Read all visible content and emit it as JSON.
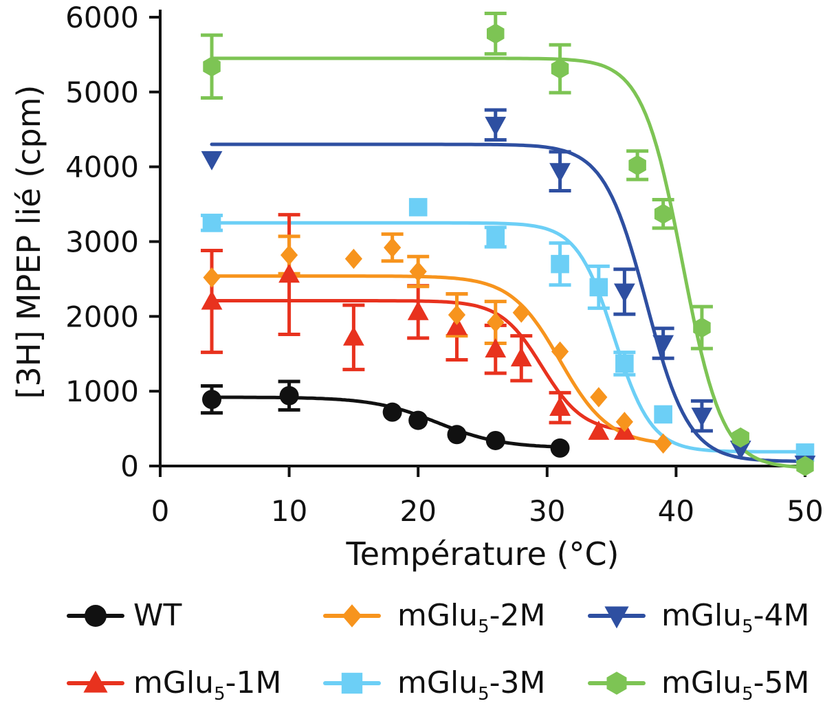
{
  "chart_data": {
    "type": "scatter",
    "title": "",
    "xlabel": "Température (°C)",
    "ylabel": "[3H] MPEP lié (cpm)",
    "xlim": [
      0,
      50
    ],
    "ylim": [
      0,
      6000
    ],
    "x_ticks": [
      0,
      10,
      20,
      30,
      40,
      50
    ],
    "y_ticks": [
      0,
      1000,
      2000,
      3000,
      4000,
      5000,
      6000
    ],
    "grid": false,
    "legend_position": "bottom",
    "series": [
      {
        "name": "WT",
        "legend_main": "WT",
        "legend_sub": "",
        "legend_suffix": "",
        "color": "#111111",
        "marker": "circle",
        "points": [
          {
            "x": 4,
            "y": 890,
            "err": 180
          },
          {
            "x": 10,
            "y": 940,
            "err": 190
          },
          {
            "x": 18,
            "y": 720,
            "err": 0
          },
          {
            "x": 20,
            "y": 610,
            "err": 0
          },
          {
            "x": 23,
            "y": 420,
            "err": 0
          },
          {
            "x": 26,
            "y": 340,
            "err": 0
          },
          {
            "x": 31,
            "y": 240,
            "err": 0
          }
        ],
        "fit": {
          "top": 920,
          "bottom": 240,
          "tm": 21.5,
          "slope": 2.5,
          "x_start": 4,
          "x_end": 31
        }
      },
      {
        "name": "mGlu5-1M",
        "legend_main": "mGlu",
        "legend_sub": "5",
        "legend_suffix": "-1M",
        "color": "#e8321e",
        "marker": "triangle-up",
        "points": [
          {
            "x": 4,
            "y": 2200,
            "err": 680
          },
          {
            "x": 10,
            "y": 2560,
            "err": 800
          },
          {
            "x": 15,
            "y": 1720,
            "err": 430
          },
          {
            "x": 20,
            "y": 2060,
            "err": 350
          },
          {
            "x": 23,
            "y": 1860,
            "err": 440
          },
          {
            "x": 26,
            "y": 1560,
            "err": 320
          },
          {
            "x": 28,
            "y": 1440,
            "err": 300
          },
          {
            "x": 31,
            "y": 780,
            "err": 200
          },
          {
            "x": 34,
            "y": 460,
            "err": 0
          },
          {
            "x": 36,
            "y": 460,
            "err": 0
          }
        ],
        "fit": {
          "top": 2210,
          "bottom": 450,
          "tm": 29.6,
          "slope": 1.6,
          "x_start": 4,
          "x_end": 36
        }
      },
      {
        "name": "mGlu5-2M",
        "legend_main": "mGlu",
        "legend_sub": "5",
        "legend_suffix": "-2M",
        "color": "#f7941d",
        "marker": "diamond",
        "points": [
          {
            "x": 4,
            "y": 2520,
            "err": 0
          },
          {
            "x": 10,
            "y": 2820,
            "err": 250
          },
          {
            "x": 15,
            "y": 2770,
            "err": 0
          },
          {
            "x": 18,
            "y": 2920,
            "err": 180
          },
          {
            "x": 20,
            "y": 2600,
            "err": 200
          },
          {
            "x": 23,
            "y": 2020,
            "err": 280
          },
          {
            "x": 26,
            "y": 1920,
            "err": 280
          },
          {
            "x": 28,
            "y": 2050,
            "err": 0
          },
          {
            "x": 31,
            "y": 1530,
            "err": 0
          },
          {
            "x": 34,
            "y": 920,
            "err": 0
          },
          {
            "x": 36,
            "y": 590,
            "err": 0
          },
          {
            "x": 39,
            "y": 300,
            "err": 0
          }
        ],
        "fit": {
          "top": 2540,
          "bottom": 280,
          "tm": 31.0,
          "slope": 1.9,
          "x_start": 4,
          "x_end": 39
        }
      },
      {
        "name": "mGlu5-3M",
        "legend_main": "mGlu",
        "legend_sub": "5",
        "legend_suffix": "-3M",
        "color": "#6ccff6",
        "marker": "square",
        "points": [
          {
            "x": 4,
            "y": 3250,
            "err": 100
          },
          {
            "x": 20,
            "y": 3460,
            "err": 0
          },
          {
            "x": 26,
            "y": 3060,
            "err": 130
          },
          {
            "x": 31,
            "y": 2700,
            "err": 280
          },
          {
            "x": 34,
            "y": 2390,
            "err": 280
          },
          {
            "x": 36,
            "y": 1370,
            "err": 150
          },
          {
            "x": 39,
            "y": 690,
            "err": 0
          },
          {
            "x": 50,
            "y": 180,
            "err": 0
          }
        ],
        "fit": {
          "top": 3250,
          "bottom": 190,
          "tm": 35.2,
          "slope": 1.45,
          "x_start": 4,
          "x_end": 50
        }
      },
      {
        "name": "mGlu5-4M",
        "legend_main": "mGlu",
        "legend_sub": "5",
        "legend_suffix": "-4M",
        "color": "#2e4fa1",
        "marker": "triangle-down",
        "points": [
          {
            "x": 4,
            "y": 4100,
            "err": 0
          },
          {
            "x": 26,
            "y": 4560,
            "err": 200
          },
          {
            "x": 31,
            "y": 3940,
            "err": 260
          },
          {
            "x": 36,
            "y": 2330,
            "err": 300
          },
          {
            "x": 39,
            "y": 1640,
            "err": 200
          },
          {
            "x": 42,
            "y": 670,
            "err": 200
          },
          {
            "x": 45,
            "y": 230,
            "err": 0
          },
          {
            "x": 50,
            "y": 30,
            "err": 0
          }
        ],
        "fit": {
          "top": 4300,
          "bottom": 60,
          "tm": 37.7,
          "slope": 1.65,
          "x_start": 4,
          "x_end": 50
        }
      },
      {
        "name": "mGlu5-5M",
        "legend_main": "mGlu",
        "legend_sub": "5",
        "legend_suffix": "-5M",
        "color": "#7dc454",
        "marker": "hexagon",
        "points": [
          {
            "x": 4,
            "y": 5340,
            "err": 420
          },
          {
            "x": 26,
            "y": 5780,
            "err": 270
          },
          {
            "x": 31,
            "y": 5310,
            "err": 320
          },
          {
            "x": 37,
            "y": 4020,
            "err": 190
          },
          {
            "x": 39,
            "y": 3370,
            "err": 190
          },
          {
            "x": 42,
            "y": 1850,
            "err": 280
          },
          {
            "x": 45,
            "y": 380,
            "err": 0
          },
          {
            "x": 50,
            "y": 0,
            "err": 0
          }
        ],
        "fit": {
          "top": 5450,
          "bottom": -30,
          "tm": 40.5,
          "slope": 1.55,
          "x_start": 4,
          "x_end": 50
        }
      }
    ]
  }
}
